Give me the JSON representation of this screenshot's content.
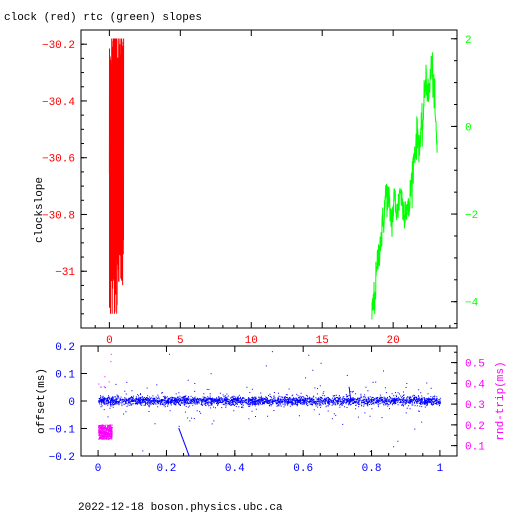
{
  "title": "clock (red) rtc (green) slopes",
  "footer": "2022-12-18  boson.physics.ubc.ca",
  "colors": {
    "clock": "#ff0000",
    "rtc": "#00ff00",
    "offset": "#0000ff",
    "rndtrip": "#ff00ff",
    "frame": "#000000"
  },
  "chart_data": [
    {
      "type": "line",
      "name": "slopes",
      "ylabel": "clockslope",
      "xlim": [
        -2,
        24.5
      ],
      "xticks": [
        0,
        5,
        10,
        15,
        20
      ],
      "ylim_left": [
        -31.2,
        -30.15
      ],
      "yticks_left": [
        -30.2,
        -30.4,
        -30.6,
        -30.8,
        -31
      ],
      "ylim_right": [
        -4.6,
        2.2
      ],
      "yticks_right": [
        2,
        0,
        -2,
        -4
      ],
      "series": [
        {
          "color": "red",
          "axis": "left",
          "x_range": [
            0,
            1
          ],
          "y_range": [
            -31.15,
            -30.18
          ],
          "description_values": [
            -30.62,
            -30.33,
            -31.08,
            -30.41,
            -30.95,
            -30.22,
            -30.78,
            -30.51,
            -31.12,
            -30.36,
            -30.88,
            -30.18,
            -30.69,
            -30.47,
            -31.02,
            -30.29,
            -30.74,
            -30.56,
            -30.93,
            -30.4,
            -30.83,
            -30.24,
            -30.66,
            -30.99,
            -30.45,
            -30.71,
            -30.58,
            -30.9
          ]
        },
        {
          "color": "green",
          "axis": "right",
          "x": [
            18.5,
            18.7,
            18.9,
            19.1,
            19.3,
            19.5,
            19.7,
            19.9,
            20.1,
            20.3,
            20.5,
            20.7,
            20.9,
            21.1,
            21.3,
            21.5,
            21.7,
            21.9,
            22.1,
            22.3,
            22.5,
            22.7,
            22.9,
            23.1
          ],
          "y": [
            -4.2,
            -3.9,
            -3.1,
            -2.6,
            -2.2,
            -1.5,
            -1.7,
            -2.2,
            -1.6,
            -2.0,
            -1.4,
            -1.9,
            -1.8,
            -2.0,
            -1.2,
            -0.6,
            -0.2,
            -0.4,
            0.1,
            1.2,
            0.6,
            1.5,
            0.7,
            -0.6
          ]
        }
      ]
    },
    {
      "type": "scatter",
      "name": "offsets",
      "ylabel": "offset(ms)",
      "ylabel_right": "rnd-trip(ms)",
      "xlim": [
        -0.05,
        1.05
      ],
      "xticks": [
        0,
        0.2,
        0.4,
        0.6,
        0.8,
        1
      ],
      "ylim_left": [
        -0.2,
        0.2
      ],
      "yticks_left": [
        0.2,
        0.1,
        0,
        -0.1,
        -0.2
      ],
      "ylim_right": [
        0.05,
        0.58
      ],
      "yticks_right": [
        0.5,
        0.4,
        0.3,
        0.2,
        0.1
      ],
      "series": [
        {
          "color": "blue",
          "axis": "left",
          "label": "offset",
          "x_range": [
            0,
            1
          ],
          "center": 0,
          "spread": 0.02
        },
        {
          "color": "magenta",
          "axis": "right",
          "label": "rnd-trip",
          "x_range": [
            0,
            0.04
          ],
          "y_range": [
            0.13,
            0.2
          ]
        }
      ]
    }
  ]
}
